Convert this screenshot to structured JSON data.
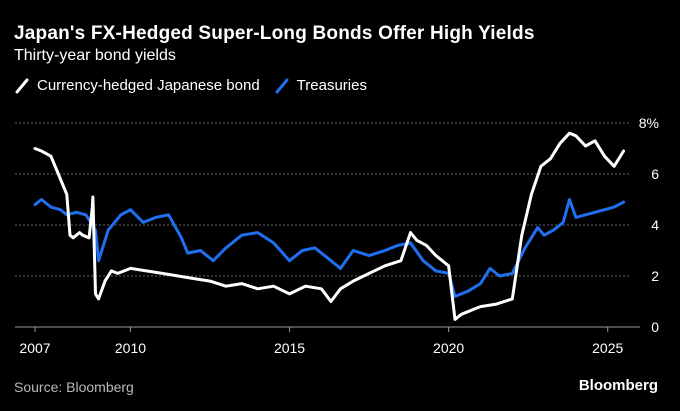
{
  "title": "Japan's FX-Hedged Super-Long Bonds Offer High Yields",
  "subtitle": "Thirty-year bond yields",
  "source": "Source: Bloomberg",
  "logo": "Bloomberg",
  "colors": {
    "background": "#000000",
    "japan": "#ffffff",
    "treasuries": "#1f6ff0",
    "grid": "#666666"
  },
  "chart_data": {
    "type": "line",
    "title": "Japan's FX-Hedged Super-Long Bonds Offer High Yields",
    "subtitle": "Thirty-year bond yields",
    "xlabel": "",
    "ylabel": "",
    "xlim": [
      2007,
      2025.7
    ],
    "ylim": [
      0,
      8
    ],
    "x_ticks": [
      2007,
      2010,
      2015,
      2020,
      2025
    ],
    "x_tick_labels": [
      "2007",
      "2010",
      "2015",
      "2020",
      "2025"
    ],
    "y_ticks": [
      0,
      2,
      4,
      6,
      8
    ],
    "y_tick_labels": [
      "0",
      "2",
      "4",
      "6",
      "8%"
    ],
    "grid": "horizontal dotted",
    "legend_position": "top-left",
    "series": [
      {
        "name": "Currency-hedged Japanese bond",
        "color": "#ffffff",
        "x": [
          2007.0,
          2007.2,
          2007.5,
          2007.7,
          2008.0,
          2008.1,
          2008.2,
          2008.4,
          2008.5,
          2008.7,
          2008.8,
          2008.82,
          2008.9,
          2009.0,
          2009.2,
          2009.4,
          2009.6,
          2010.0,
          2010.5,
          2011.0,
          2011.5,
          2012.0,
          2012.5,
          2013.0,
          2013.5,
          2014.0,
          2014.5,
          2015.0,
          2015.5,
          2016.0,
          2016.3,
          2016.6,
          2017.0,
          2017.5,
          2018.0,
          2018.5,
          2018.8,
          2019.0,
          2019.3,
          2019.6,
          2020.0,
          2020.2,
          2020.4,
          2020.8,
          2021.0,
          2021.5,
          2022.0,
          2022.3,
          2022.6,
          2022.9,
          2023.2,
          2023.5,
          2023.8,
          2024.0,
          2024.3,
          2024.6,
          2024.9,
          2025.2,
          2025.5
        ],
        "values": [
          7.0,
          6.9,
          6.7,
          6.1,
          5.2,
          3.6,
          3.5,
          3.7,
          3.6,
          3.5,
          4.7,
          5.1,
          1.3,
          1.1,
          1.8,
          2.2,
          2.1,
          2.3,
          2.2,
          2.1,
          2.0,
          1.9,
          1.8,
          1.6,
          1.7,
          1.5,
          1.6,
          1.3,
          1.6,
          1.5,
          1.0,
          1.5,
          1.8,
          2.1,
          2.4,
          2.6,
          3.7,
          3.4,
          3.2,
          2.8,
          2.4,
          0.3,
          0.5,
          0.7,
          0.8,
          0.9,
          1.1,
          3.6,
          5.2,
          6.3,
          6.6,
          7.2,
          7.6,
          7.5,
          7.1,
          7.3,
          6.7,
          6.3,
          6.9
        ]
      },
      {
        "name": "Treasuries",
        "color": "#1f6ff0",
        "x": [
          2007.0,
          2007.2,
          2007.5,
          2007.8,
          2008.0,
          2008.3,
          2008.6,
          2008.9,
          2009.0,
          2009.3,
          2009.7,
          2010.0,
          2010.4,
          2010.8,
          2011.2,
          2011.6,
          2011.8,
          2012.2,
          2012.6,
          2013.0,
          2013.5,
          2014.0,
          2014.5,
          2015.0,
          2015.4,
          2015.8,
          2016.2,
          2016.6,
          2017.0,
          2017.5,
          2018.0,
          2018.4,
          2018.8,
          2019.2,
          2019.6,
          2020.0,
          2020.2,
          2020.6,
          2021.0,
          2021.3,
          2021.6,
          2022.0,
          2022.4,
          2022.8,
          2023.0,
          2023.3,
          2023.6,
          2023.8,
          2024.0,
          2024.3,
          2024.6,
          2024.9,
          2025.2,
          2025.5
        ],
        "values": [
          4.8,
          5.0,
          4.7,
          4.6,
          4.4,
          4.5,
          4.4,
          3.8,
          2.6,
          3.8,
          4.4,
          4.6,
          4.1,
          4.3,
          4.4,
          3.5,
          2.9,
          3.0,
          2.6,
          3.1,
          3.6,
          3.7,
          3.3,
          2.6,
          3.0,
          3.1,
          2.7,
          2.3,
          3.0,
          2.8,
          3.0,
          3.2,
          3.3,
          2.6,
          2.2,
          2.1,
          1.2,
          1.4,
          1.7,
          2.3,
          2.0,
          2.1,
          3.1,
          3.9,
          3.6,
          3.8,
          4.1,
          5.0,
          4.3,
          4.4,
          4.5,
          4.6,
          4.7,
          4.9
        ]
      }
    ]
  }
}
